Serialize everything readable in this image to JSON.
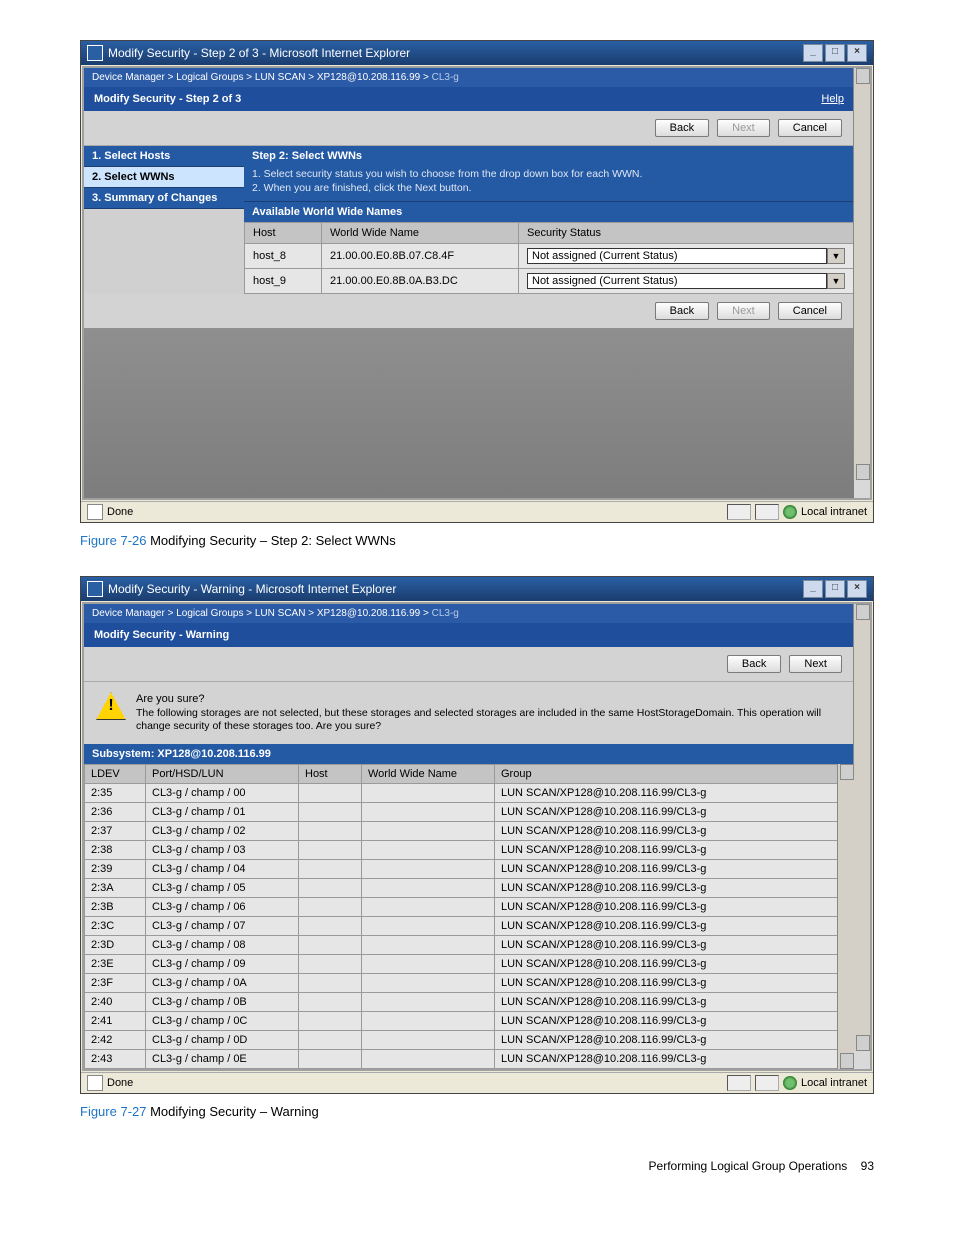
{
  "fig1": {
    "win_title": "Modify Security - Step 2 of 3 - Microsoft Internet Explorer",
    "breadcrumb_prefix": "Device Manager > Logical Groups > LUN SCAN > XP128@10.208.116.99 > ",
    "breadcrumb_current": "CL3-g",
    "subheader": "Modify Security - Step 2 of 3",
    "help": "Help",
    "back": "Back",
    "next": "Next",
    "cancel": "Cancel",
    "steps": [
      {
        "label": "1. Select Hosts",
        "active": false
      },
      {
        "label": "2. Select WWNs",
        "active": true
      },
      {
        "label": "3. Summary of Changes",
        "active": false
      }
    ],
    "step_title": "Step 2: Select WWNs",
    "step_desc1": "1. Select security status you wish to choose from the drop down box for each WWN.",
    "step_desc2": "2. When you are finished, click the Next button.",
    "table_title": "Available World Wide Names",
    "cols": {
      "host": "Host",
      "wwn": "World Wide Name",
      "status": "Security Status"
    },
    "rows": [
      {
        "host": "host_8",
        "wwn": "21.00.00.E0.8B.07.C8.4F",
        "status": "Not assigned (Current Status)"
      },
      {
        "host": "host_9",
        "wwn": "21.00.00.E0.8B.0A.B3.DC",
        "status": "Not assigned (Current Status)"
      }
    ],
    "status_done": "Done",
    "status_zone": "Local intranet",
    "caption_ref": "Figure 7-26",
    "caption_text": " Modifying Security – Step 2: Select WWNs"
  },
  "fig2": {
    "win_title": "Modify Security - Warning - Microsoft Internet Explorer",
    "breadcrumb_prefix": "Device Manager > Logical Groups > LUN SCAN > XP128@10.208.116.99 > ",
    "breadcrumb_current": "CL3-g",
    "subheader": "Modify Security - Warning",
    "back": "Back",
    "next": "Next",
    "warn_q": "Are you sure?",
    "warn_body": "The following storages are not selected, but these storages and selected storages are included in the same HostStorageDomain. This operation will change security of these storages too. Are you sure?",
    "subsystem": "Subsystem: XP128@10.208.116.99",
    "cols": {
      "ldev": "LDEV",
      "phl": "Port/HSD/LUN",
      "host": "Host",
      "wwn": "World Wide Name",
      "group": "Group"
    },
    "rows": [
      {
        "ldev": "2:35",
        "phl": "CL3-g / champ / 00",
        "group": "LUN SCAN/XP128@10.208.116.99/CL3-g"
      },
      {
        "ldev": "2:36",
        "phl": "CL3-g / champ / 01",
        "group": "LUN SCAN/XP128@10.208.116.99/CL3-g"
      },
      {
        "ldev": "2:37",
        "phl": "CL3-g / champ / 02",
        "group": "LUN SCAN/XP128@10.208.116.99/CL3-g"
      },
      {
        "ldev": "2:38",
        "phl": "CL3-g / champ / 03",
        "group": "LUN SCAN/XP128@10.208.116.99/CL3-g"
      },
      {
        "ldev": "2:39",
        "phl": "CL3-g / champ / 04",
        "group": "LUN SCAN/XP128@10.208.116.99/CL3-g"
      },
      {
        "ldev": "2:3A",
        "phl": "CL3-g / champ / 05",
        "group": "LUN SCAN/XP128@10.208.116.99/CL3-g"
      },
      {
        "ldev": "2:3B",
        "phl": "CL3-g / champ / 06",
        "group": "LUN SCAN/XP128@10.208.116.99/CL3-g"
      },
      {
        "ldev": "2:3C",
        "phl": "CL3-g / champ / 07",
        "group": "LUN SCAN/XP128@10.208.116.99/CL3-g"
      },
      {
        "ldev": "2:3D",
        "phl": "CL3-g / champ / 08",
        "group": "LUN SCAN/XP128@10.208.116.99/CL3-g"
      },
      {
        "ldev": "2:3E",
        "phl": "CL3-g / champ / 09",
        "group": "LUN SCAN/XP128@10.208.116.99/CL3-g"
      },
      {
        "ldev": "2:3F",
        "phl": "CL3-g / champ / 0A",
        "group": "LUN SCAN/XP128@10.208.116.99/CL3-g"
      },
      {
        "ldev": "2:40",
        "phl": "CL3-g / champ / 0B",
        "group": "LUN SCAN/XP128@10.208.116.99/CL3-g"
      },
      {
        "ldev": "2:41",
        "phl": "CL3-g / champ / 0C",
        "group": "LUN SCAN/XP128@10.208.116.99/CL3-g"
      },
      {
        "ldev": "2:42",
        "phl": "CL3-g / champ / 0D",
        "group": "LUN SCAN/XP128@10.208.116.99/CL3-g"
      },
      {
        "ldev": "2:43",
        "phl": "CL3-g / champ / 0E",
        "group": "LUN SCAN/XP128@10.208.116.99/CL3-g"
      }
    ],
    "status_done": "Done",
    "status_zone": "Local intranet",
    "caption_ref": "Figure 7-27",
    "caption_text": " Modifying Security – Warning"
  },
  "footer": {
    "section": "Performing Logical Group Operations",
    "page": "93"
  }
}
